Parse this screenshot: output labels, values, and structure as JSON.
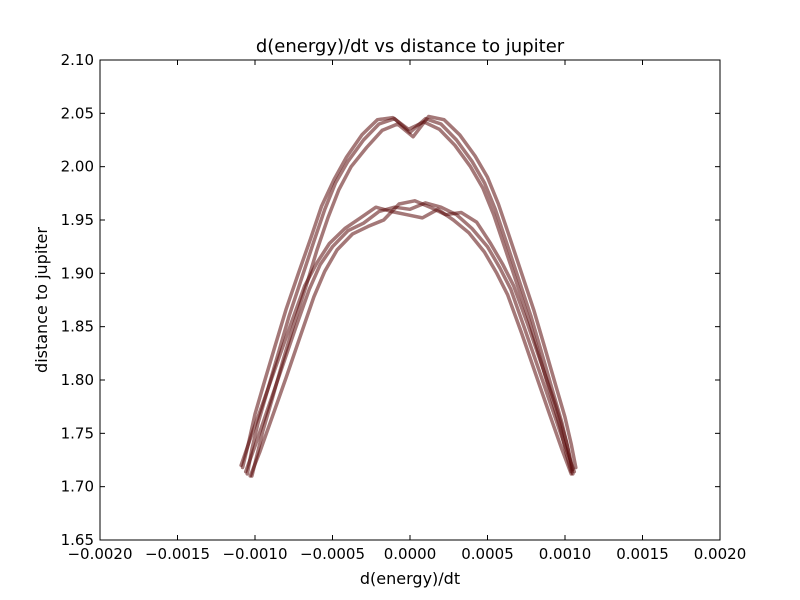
{
  "chart_data": {
    "type": "line",
    "title": "d(energy)/dt vs distance to jupiter",
    "xlabel": "d(energy)/dt",
    "ylabel": "distance to jupiter",
    "xlim": [
      -0.002,
      0.002
    ],
    "ylim": [
      1.65,
      2.1
    ],
    "xticks": [
      -0.002,
      -0.0015,
      -0.001,
      -0.0005,
      0.0,
      0.0005,
      0.001,
      0.0015,
      0.002
    ],
    "xtick_labels": [
      "−0.0020",
      "−0.0015",
      "−0.0010",
      "−0.0005",
      "0.0000",
      "0.0005",
      "0.0010",
      "0.0015",
      "0.0020"
    ],
    "yticks": [
      1.65,
      1.7,
      1.75,
      1.8,
      1.85,
      1.9,
      1.95,
      2.0,
      2.05,
      2.1
    ],
    "ytick_labels": [
      "1.65",
      "1.70",
      "1.75",
      "1.80",
      "1.85",
      "1.90",
      "1.95",
      "2.00",
      "2.05",
      "2.10"
    ],
    "grid": false,
    "line_color": "#5a0a0a",
    "series": [
      {
        "x": [
          -0.00105,
          -0.00102,
          -0.00098,
          -0.00092,
          -0.00085,
          -0.00078,
          -0.0007,
          -0.00062,
          -0.00055,
          -0.00048,
          -0.0004,
          -0.0003,
          -0.0002,
          -0.0001,
          0.0,
          0.0001,
          0.0002,
          0.0003,
          0.0004,
          0.00048,
          0.00055,
          0.00062,
          0.0007,
          0.00078,
          0.00085,
          0.00092,
          0.00098,
          0.00102,
          0.00105
        ],
        "y": [
          1.712,
          1.735,
          1.76,
          1.79,
          1.825,
          1.86,
          1.895,
          1.93,
          1.96,
          1.985,
          2.005,
          2.025,
          2.04,
          2.045,
          2.032,
          2.045,
          2.04,
          2.025,
          2.005,
          1.985,
          1.96,
          1.93,
          1.895,
          1.86,
          1.825,
          1.79,
          1.76,
          1.735,
          1.712
        ]
      },
      {
        "x": [
          -0.00108,
          -0.00104,
          -0.001,
          -0.00094,
          -0.00087,
          -0.0008,
          -0.00072,
          -0.00064,
          -0.00057,
          -0.00049,
          -0.00041,
          -0.00031,
          -0.00021,
          -0.00011,
          -1e-05,
          9e-05,
          0.00019,
          0.00029,
          0.00039,
          0.00047,
          0.00054,
          0.00061,
          0.00069,
          0.00077,
          0.00084,
          0.00091,
          0.00097,
          0.00101,
          0.00104
        ],
        "y": [
          1.718,
          1.742,
          1.768,
          1.798,
          1.832,
          1.866,
          1.9,
          1.933,
          1.963,
          1.988,
          2.009,
          2.03,
          2.044,
          2.046,
          2.035,
          2.042,
          2.035,
          2.02,
          2.0,
          1.98,
          1.955,
          1.925,
          1.89,
          1.855,
          1.82,
          1.785,
          1.755,
          1.73,
          1.714
        ]
      },
      {
        "x": [
          -0.00102,
          -0.00099,
          -0.00095,
          -0.00089,
          -0.00082,
          -0.00075,
          -0.00067,
          -0.0006,
          -0.00053,
          -0.00046,
          -0.00038,
          -0.00028,
          -0.00018,
          -8e-05,
          2e-05,
          0.00012,
          0.00022,
          0.00032,
          0.00042,
          0.0005,
          0.00057,
          0.00064,
          0.00072,
          0.0008,
          0.00087,
          0.00094,
          0.001,
          0.00104,
          0.00107
        ],
        "y": [
          1.71,
          1.728,
          1.752,
          1.782,
          1.818,
          1.852,
          1.888,
          1.922,
          1.952,
          1.978,
          2.0,
          2.018,
          2.034,
          2.04,
          2.028,
          2.047,
          2.044,
          2.03,
          2.01,
          1.99,
          1.965,
          1.935,
          1.9,
          1.865,
          1.83,
          1.795,
          1.765,
          1.74,
          1.718
        ]
      },
      {
        "x": [
          -0.00106,
          -0.001,
          -0.00092,
          -0.00083,
          -0.00074,
          -0.00065,
          -0.00058,
          -0.0005,
          -0.0004,
          -0.0003,
          -0.0002,
          -0.0001,
          0.0,
          0.0001,
          0.0002,
          0.0003,
          0.0004,
          0.0005,
          0.00058,
          0.00065,
          0.00074,
          0.00083,
          0.00092,
          0.001,
          0.00106
        ],
        "y": [
          1.714,
          1.738,
          1.772,
          1.81,
          1.848,
          1.885,
          1.908,
          1.925,
          1.94,
          1.947,
          1.958,
          1.962,
          1.96,
          1.966,
          1.962,
          1.955,
          1.942,
          1.925,
          1.905,
          1.885,
          1.848,
          1.81,
          1.772,
          1.738,
          1.714
        ]
      },
      {
        "x": [
          -0.00103,
          -0.00097,
          -0.00089,
          -0.0008,
          -0.00071,
          -0.00062,
          -0.00055,
          -0.00047,
          -0.00037,
          -0.00027,
          -0.00017,
          -7e-05,
          3e-05,
          0.00013,
          0.00023,
          0.00033,
          0.00043,
          0.00052,
          0.0006,
          0.00067,
          0.00076,
          0.00085,
          0.00094,
          0.00101,
          0.00105
        ],
        "y": [
          1.71,
          1.732,
          1.765,
          1.802,
          1.84,
          1.878,
          1.902,
          1.922,
          1.937,
          1.944,
          1.95,
          1.965,
          1.968,
          1.962,
          1.955,
          1.957,
          1.948,
          1.928,
          1.908,
          1.888,
          1.852,
          1.814,
          1.776,
          1.742,
          1.716
        ]
      },
      {
        "x": [
          -0.00109,
          -0.00103,
          -0.00095,
          -0.00086,
          -0.00077,
          -0.00068,
          -0.0006,
          -0.00052,
          -0.00042,
          -0.00032,
          -0.00022,
          -0.00012,
          -2e-05,
          8e-05,
          0.00018,
          0.00028,
          0.00038,
          0.00048,
          0.00056,
          0.00063,
          0.00072,
          0.00081,
          0.0009,
          0.00098,
          0.00104
        ],
        "y": [
          1.72,
          1.745,
          1.778,
          1.815,
          1.852,
          1.888,
          1.91,
          1.928,
          1.942,
          1.952,
          1.962,
          1.958,
          1.955,
          1.952,
          1.96,
          1.95,
          1.938,
          1.92,
          1.9,
          1.88,
          1.844,
          1.806,
          1.768,
          1.735,
          1.712
        ]
      }
    ]
  }
}
